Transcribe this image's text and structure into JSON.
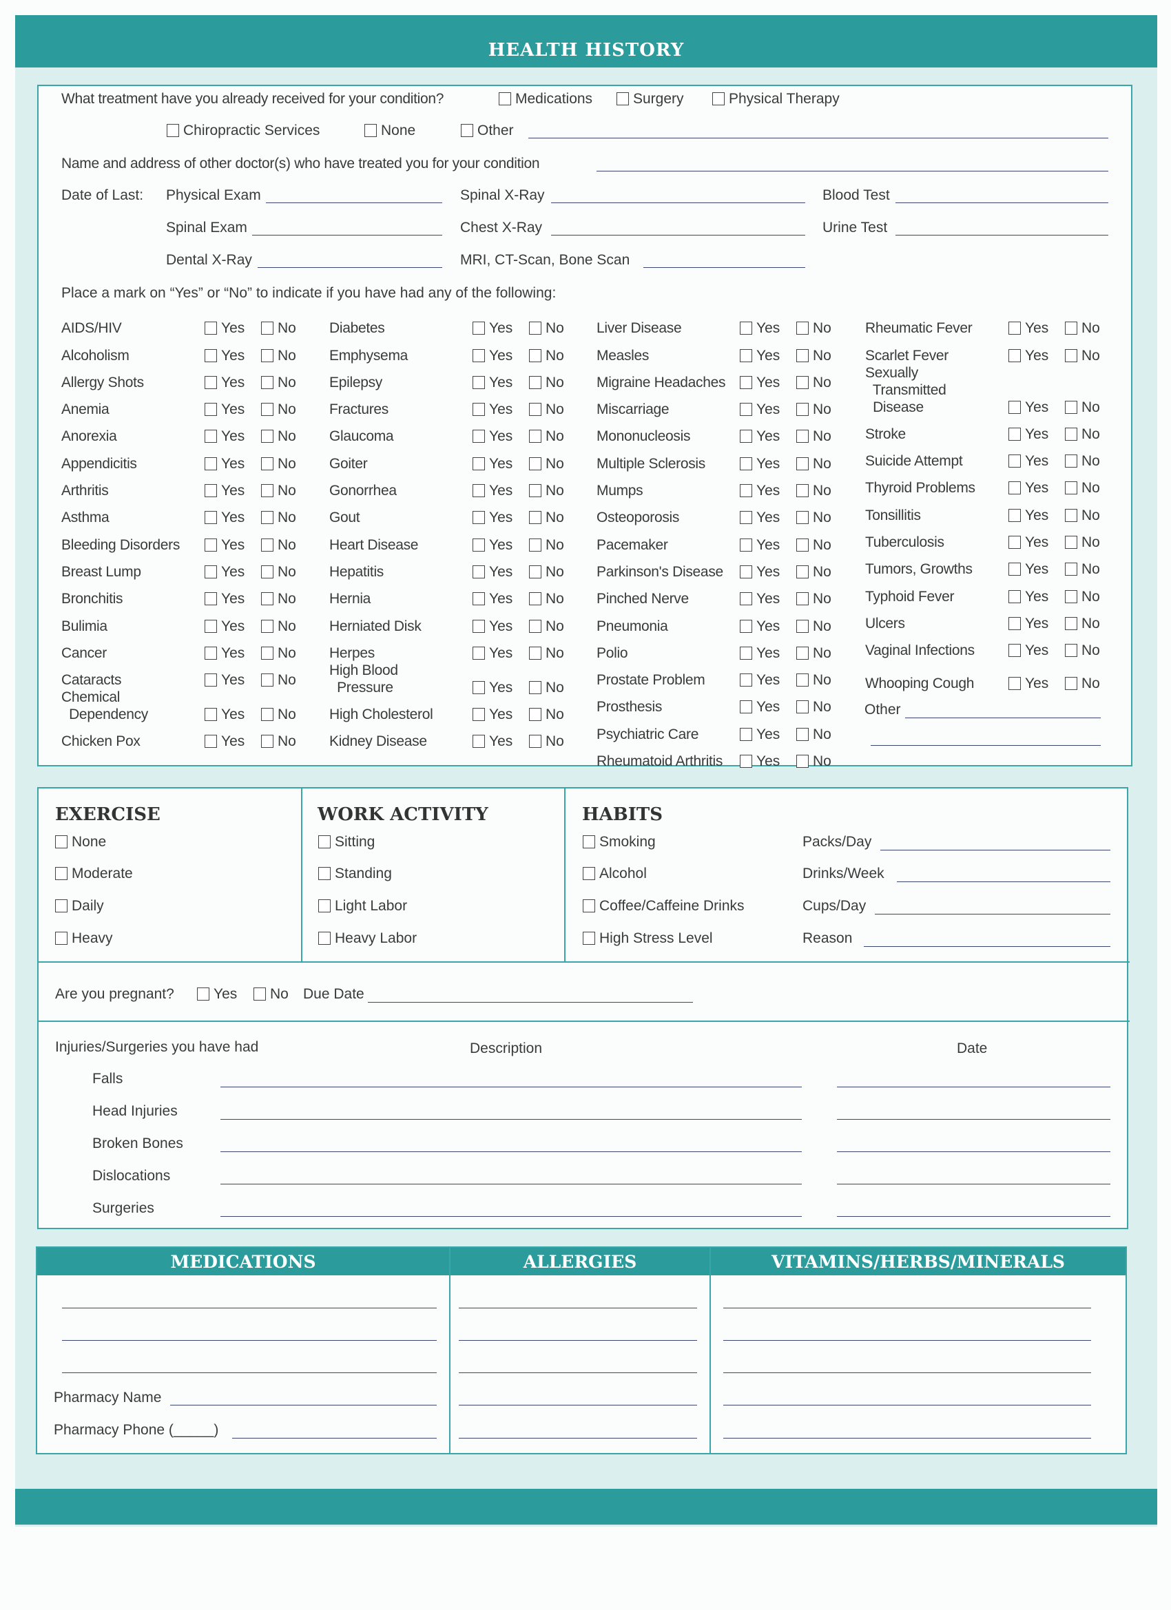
{
  "title": "HEALTH HISTORY",
  "treatment": {
    "question": "What treatment have you already received for your condition?",
    "options": [
      "Medications",
      "Surgery",
      "Physical Therapy",
      "Chiropractic Services",
      "None",
      "Other"
    ]
  },
  "doctors_label": "Name and address of other doctor(s) who have treated you for your condition",
  "date_of_last": {
    "label": "Date of Last:",
    "items": [
      "Physical Exam",
      "Spinal X-Ray",
      "Blood Test",
      "Spinal Exam",
      "Chest X-Ray",
      "Urine Test",
      "Dental X-Ray",
      "MRI, CT-Scan, Bone Scan"
    ]
  },
  "instructions": "Place a mark on “Yes” or “No” to indicate if you have had any of the following:",
  "yes_label": "Yes",
  "no_label": "No",
  "conditions": [
    [
      "AIDS/HIV",
      "Alcoholism",
      "Allergy Shots",
      "Anemia",
      "Anorexia",
      "Appendicitis",
      "Arthritis",
      "Asthma",
      "Bleeding Disorders",
      "Breast Lump",
      "Bronchitis",
      "Bulimia",
      "Cancer",
      "Cataracts",
      "Chemical\n  Dependency",
      "Chicken Pox"
    ],
    [
      "Diabetes",
      "Emphysema",
      "Epilepsy",
      "Fractures",
      "Glaucoma",
      "Goiter",
      "Gonorrhea",
      "Gout",
      "Heart Disease",
      "Hepatitis",
      "Hernia",
      "Herniated Disk",
      "Herpes",
      "High Blood\n  Pressure",
      "High Cholesterol",
      "Kidney Disease"
    ],
    [
      "Liver Disease",
      "Measles",
      "Migraine Headaches",
      "Miscarriage",
      "Mononucleosis",
      "Multiple Sclerosis",
      "Mumps",
      "Osteoporosis",
      "Pacemaker",
      "Parkinson's Disease",
      "Pinched Nerve",
      "Pneumonia",
      "Polio",
      "Prostate Problem",
      "Prosthesis",
      "Psychiatric Care",
      "Rheumatoid Arthritis"
    ],
    [
      "Rheumatic Fever",
      "Scarlet Fever",
      "Sexually\n  Transmitted\n  Disease",
      "Stroke",
      "Suicide Attempt",
      "Thyroid Problems",
      "Tonsillitis",
      "Tuberculosis",
      "Tumors, Growths",
      "Typhoid Fever",
      "Ulcers",
      "Vaginal Infections",
      "Whooping Cough"
    ]
  ],
  "conditions_other": "Other",
  "exercise": {
    "title": "EXERCISE",
    "options": [
      "None",
      "Moderate",
      "Daily",
      "Heavy"
    ]
  },
  "work": {
    "title": "WORK ACTIVITY",
    "options": [
      "Sitting",
      "Standing",
      "Light Labor",
      "Heavy Labor"
    ]
  },
  "habits": {
    "title": "HABITS",
    "options": [
      "Smoking",
      "Alcohol",
      "Coffee/Caffeine Drinks",
      "High Stress Level"
    ],
    "fields": [
      "Packs/Day",
      "Drinks/Week",
      "Cups/Day",
      "Reason"
    ]
  },
  "pregnancy": {
    "question": "Are you pregnant?",
    "yes": "Yes",
    "no": "No",
    "due": "Due Date"
  },
  "injuries": {
    "title": "Injuries/Surgeries you have had",
    "description": "Description",
    "date": "Date",
    "items": [
      "Falls",
      "Head Injuries",
      "Broken Bones",
      "Dislocations",
      "Surgeries"
    ]
  },
  "medications": {
    "title": "MEDICATIONS",
    "pharmacy_name": "Pharmacy Name",
    "pharmacy_phone": "Pharmacy Phone (_____)"
  },
  "allergies": {
    "title": "ALLERGIES"
  },
  "vitamins": {
    "title": "VITAMINS/HERBS/MINERALS"
  },
  "colors": {
    "accent": "#2b9c9b",
    "background": "#dcefef"
  }
}
